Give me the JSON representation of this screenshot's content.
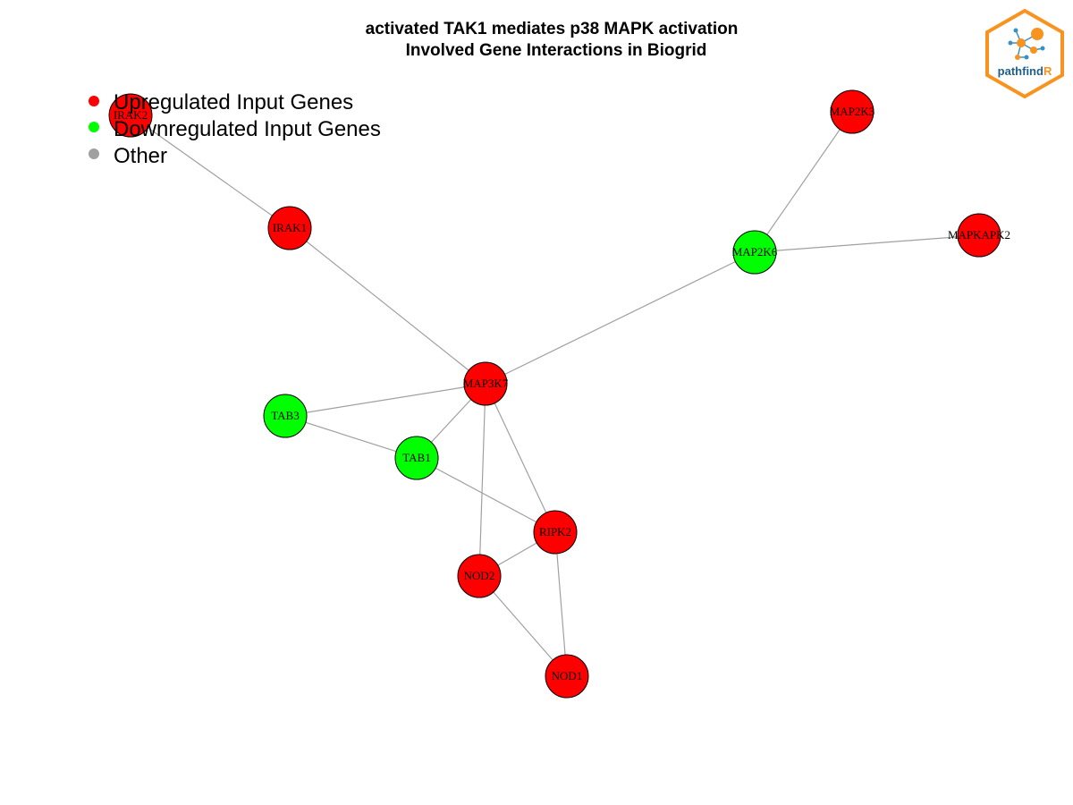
{
  "title": {
    "line1": "activated TAK1 mediates p38 MAPK activation",
    "line2": "Involved Gene Interactions in Biogrid"
  },
  "legend": [
    {
      "label": "Upregulated Input Genes",
      "color": "#ff0000"
    },
    {
      "label": "Downregulated Input Genes",
      "color": "#00ff00"
    },
    {
      "label": "Other",
      "color": "#a0a0a0"
    }
  ],
  "logo": {
    "text_main": "pathfind",
    "text_accent": "R",
    "border_color": "#f7931e",
    "text_color": "#1f5f8b",
    "accent_color": "#f7931e"
  },
  "colors": {
    "up": "#ff0000",
    "down": "#00ff00",
    "edge": "#a0a0a0"
  },
  "graph": {
    "nodes": [
      {
        "id": "IRAK2",
        "status": "up"
      },
      {
        "id": "IRAK1",
        "status": "up"
      },
      {
        "id": "MAP2K3",
        "status": "up"
      },
      {
        "id": "MAP2K6",
        "status": "down"
      },
      {
        "id": "MAPKAPK2",
        "status": "up"
      },
      {
        "id": "MAP3K7",
        "status": "up"
      },
      {
        "id": "TAB3",
        "status": "down"
      },
      {
        "id": "TAB1",
        "status": "down"
      },
      {
        "id": "RIPK2",
        "status": "up"
      },
      {
        "id": "NOD2",
        "status": "up"
      },
      {
        "id": "NOD1",
        "status": "up"
      }
    ],
    "edges": [
      [
        "IRAK2",
        "IRAK1"
      ],
      [
        "IRAK1",
        "MAP3K7"
      ],
      [
        "MAP2K3",
        "MAP2K6"
      ],
      [
        "MAP2K6",
        "MAPKAPK2"
      ],
      [
        "MAP2K6",
        "MAP3K7"
      ],
      [
        "MAP3K7",
        "TAB3"
      ],
      [
        "MAP3K7",
        "TAB1"
      ],
      [
        "MAP3K7",
        "RIPK2"
      ],
      [
        "MAP3K7",
        "NOD2"
      ],
      [
        "TAB3",
        "TAB1"
      ],
      [
        "TAB1",
        "RIPK2"
      ],
      [
        "RIPK2",
        "NOD2"
      ],
      [
        "RIPK2",
        "NOD1"
      ],
      [
        "NOD2",
        "NOD1"
      ]
    ]
  }
}
